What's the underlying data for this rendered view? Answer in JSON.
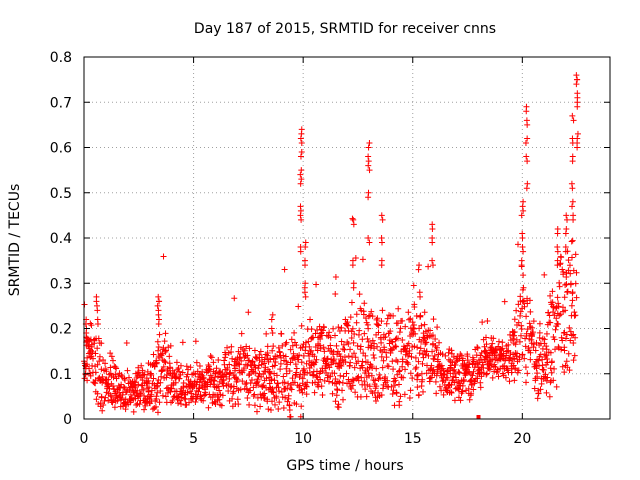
{
  "chart_data": {
    "type": "scatter",
    "title": "Day 187 of 2015, SRMTID for receiver cnns",
    "xlabel": "GPS time / hours",
    "ylabel": "SRMTID / TECUs",
    "xlim": [
      0,
      24
    ],
    "ylim": [
      0,
      0.8
    ],
    "xticks": [
      0,
      5,
      10,
      15,
      20
    ],
    "xtick_labels": [
      "0",
      "5",
      "10",
      "15",
      "20"
    ],
    "yticks": [
      0,
      0.1,
      0.2,
      0.3,
      0.4,
      0.5,
      0.6,
      0.7,
      0.8
    ],
    "ytick_labels": [
      "0",
      "0.1",
      "0.2",
      "0.3",
      "0.4",
      "0.5",
      "0.6",
      "0.7",
      "0.8"
    ],
    "grid": true,
    "marker": "+",
    "series": [
      {
        "name": "SRMTID",
        "color": "#ff0000",
        "envelope": [
          {
            "t": 0.0,
            "base": 0.12,
            "spread": 0.06
          },
          {
            "t": 0.3,
            "base": 0.14,
            "spread": 0.08
          },
          {
            "t": 0.7,
            "base": 0.1,
            "spread": 0.12
          },
          {
            "t": 1.0,
            "base": 0.08,
            "spread": 0.06
          },
          {
            "t": 2.0,
            "base": 0.06,
            "spread": 0.05
          },
          {
            "t": 3.0,
            "base": 0.07,
            "spread": 0.06
          },
          {
            "t": 3.5,
            "base": 0.1,
            "spread": 0.12
          },
          {
            "t": 4.0,
            "base": 0.08,
            "spread": 0.06
          },
          {
            "t": 5.0,
            "base": 0.07,
            "spread": 0.05
          },
          {
            "t": 6.0,
            "base": 0.09,
            "spread": 0.07
          },
          {
            "t": 7.0,
            "base": 0.1,
            "spread": 0.08
          },
          {
            "t": 8.0,
            "base": 0.09,
            "spread": 0.08
          },
          {
            "t": 9.0,
            "base": 0.1,
            "spread": 0.1
          },
          {
            "t": 9.7,
            "base": 0.08,
            "spread": 0.1
          },
          {
            "t": 10.5,
            "base": 0.14,
            "spread": 0.1
          },
          {
            "t": 11.5,
            "base": 0.12,
            "spread": 0.1
          },
          {
            "t": 12.5,
            "base": 0.15,
            "spread": 0.14
          },
          {
            "t": 13.5,
            "base": 0.14,
            "spread": 0.14
          },
          {
            "t": 14.5,
            "base": 0.12,
            "spread": 0.1
          },
          {
            "t": 15.5,
            "base": 0.16,
            "spread": 0.12
          },
          {
            "t": 16.5,
            "base": 0.1,
            "spread": 0.06
          },
          {
            "t": 17.5,
            "base": 0.09,
            "spread": 0.06
          },
          {
            "t": 18.5,
            "base": 0.14,
            "spread": 0.05
          },
          {
            "t": 19.5,
            "base": 0.13,
            "spread": 0.06
          },
          {
            "t": 20.0,
            "base": 0.22,
            "spread": 0.14
          },
          {
            "t": 20.7,
            "base": 0.1,
            "spread": 0.08
          },
          {
            "t": 21.5,
            "base": 0.2,
            "spread": 0.15
          },
          {
            "t": 22.5,
            "base": 0.25,
            "spread": 0.18
          }
        ],
        "spikes": [
          {
            "x": 0.1,
            "values": [
              0.18,
              0.2,
              0.22
            ]
          },
          {
            "x": 0.6,
            "values": [
              0.22,
              0.25,
              0.27
            ]
          },
          {
            "x": 3.4,
            "values": [
              0.22,
              0.24,
              0.26,
              0.27
            ]
          },
          {
            "x": 8.6,
            "values": [
              0.2,
              0.23
            ]
          },
          {
            "x": 9.9,
            "values": [
              0.38,
              0.45,
              0.47,
              0.53,
              0.55,
              0.59,
              0.62,
              0.64
            ]
          },
          {
            "x": 10.1,
            "values": [
              0.28,
              0.3,
              0.35,
              0.39
            ]
          },
          {
            "x": 12.3,
            "values": [
              0.3,
              0.35,
              0.44
            ]
          },
          {
            "x": 13.0,
            "values": [
              0.4,
              0.5,
              0.56,
              0.58,
              0.61
            ]
          },
          {
            "x": 13.6,
            "values": [
              0.35,
              0.4,
              0.45
            ]
          },
          {
            "x": 15.3,
            "values": [
              0.28,
              0.34
            ]
          },
          {
            "x": 15.9,
            "values": [
              0.35,
              0.4,
              0.43
            ]
          },
          {
            "x": 20.0,
            "values": [
              0.35,
              0.38,
              0.41,
              0.46,
              0.48
            ]
          },
          {
            "x": 20.2,
            "values": [
              0.52,
              0.58,
              0.62,
              0.66,
              0.69
            ]
          },
          {
            "x": 21.6,
            "values": [
              0.35,
              0.38,
              0.42
            ]
          },
          {
            "x": 22.0,
            "values": [
              0.38,
              0.42,
              0.45
            ]
          },
          {
            "x": 22.3,
            "values": [
              0.45,
              0.48,
              0.52,
              0.58,
              0.62,
              0.67
            ]
          },
          {
            "x": 22.5,
            "values": [
              0.72,
              0.75,
              0.76,
              0.7,
              0.63,
              0.61
            ]
          }
        ]
      }
    ]
  }
}
